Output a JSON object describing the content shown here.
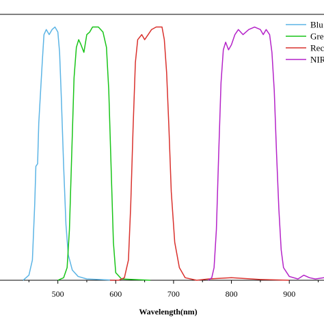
{
  "chart_data": {
    "type": "line",
    "title": "",
    "xlabel": "Wavelength(nm)",
    "ylabel": "",
    "xlim": [
      400,
      960
    ],
    "ylim": [
      0,
      1.05
    ],
    "x_ticks": [
      500,
      600,
      700,
      800,
      900
    ],
    "grid": false,
    "legend_placement": "top-right",
    "series": [
      {
        "name": "Blu",
        "color": "#5bb4e5",
        "points": [
          [
            440,
            0
          ],
          [
            450,
            0.02
          ],
          [
            456,
            0.08
          ],
          [
            460,
            0.3
          ],
          [
            462,
            0.45
          ],
          [
            465,
            0.46
          ],
          [
            467,
            0.62
          ],
          [
            470,
            0.74
          ],
          [
            473,
            0.86
          ],
          [
            476,
            0.97
          ],
          [
            480,
            0.99
          ],
          [
            485,
            0.97
          ],
          [
            490,
            0.99
          ],
          [
            495,
            1.0
          ],
          [
            500,
            0.98
          ],
          [
            503,
            0.9
          ],
          [
            506,
            0.72
          ],
          [
            510,
            0.45
          ],
          [
            514,
            0.22
          ],
          [
            518,
            0.1
          ],
          [
            525,
            0.04
          ],
          [
            535,
            0.015
          ],
          [
            550,
            0.005
          ],
          [
            600,
            0
          ]
        ]
      },
      {
        "name": "Gre",
        "color": "#17c417",
        "points": [
          [
            500,
            0
          ],
          [
            510,
            0.01
          ],
          [
            516,
            0.05
          ],
          [
            520,
            0.2
          ],
          [
            524,
            0.5
          ],
          [
            528,
            0.8
          ],
          [
            532,
            0.92
          ],
          [
            536,
            0.95
          ],
          [
            540,
            0.93
          ],
          [
            545,
            0.9
          ],
          [
            550,
            0.97
          ],
          [
            555,
            0.98
          ],
          [
            560,
            1.0
          ],
          [
            570,
            1.0
          ],
          [
            578,
            0.98
          ],
          [
            584,
            0.92
          ],
          [
            588,
            0.75
          ],
          [
            592,
            0.45
          ],
          [
            596,
            0.15
          ],
          [
            600,
            0.03
          ],
          [
            610,
            0.005
          ],
          [
            660,
            0
          ]
        ]
      },
      {
        "name": "Rec",
        "color": "#d9302c",
        "points": [
          [
            590,
            0
          ],
          [
            605,
            0
          ],
          [
            615,
            0.01
          ],
          [
            622,
            0.08
          ],
          [
            626,
            0.3
          ],
          [
            630,
            0.6
          ],
          [
            634,
            0.86
          ],
          [
            638,
            0.95
          ],
          [
            645,
            0.97
          ],
          [
            650,
            0.95
          ],
          [
            656,
            0.97
          ],
          [
            662,
            0.99
          ],
          [
            670,
            1.0
          ],
          [
            680,
            1.0
          ],
          [
            684,
            0.95
          ],
          [
            688,
            0.82
          ],
          [
            692,
            0.6
          ],
          [
            696,
            0.35
          ],
          [
            702,
            0.15
          ],
          [
            710,
            0.05
          ],
          [
            720,
            0.01
          ],
          [
            740,
            0
          ],
          [
            760,
            0.005
          ],
          [
            800,
            0.01
          ],
          [
            850,
            0.003
          ],
          [
            900,
            0
          ]
        ]
      },
      {
        "name": "NIR",
        "color": "#b422c8",
        "points": [
          [
            760,
            0
          ],
          [
            766,
            0.01
          ],
          [
            770,
            0.05
          ],
          [
            774,
            0.2
          ],
          [
            778,
            0.5
          ],
          [
            782,
            0.78
          ],
          [
            786,
            0.91
          ],
          [
            790,
            0.94
          ],
          [
            795,
            0.91
          ],
          [
            800,
            0.93
          ],
          [
            806,
            0.97
          ],
          [
            812,
            0.99
          ],
          [
            820,
            0.97
          ],
          [
            830,
            0.99
          ],
          [
            840,
            1.0
          ],
          [
            850,
            0.99
          ],
          [
            855,
            0.97
          ],
          [
            860,
            0.99
          ],
          [
            866,
            0.97
          ],
          [
            870,
            0.9
          ],
          [
            874,
            0.75
          ],
          [
            878,
            0.5
          ],
          [
            882,
            0.28
          ],
          [
            886,
            0.12
          ],
          [
            890,
            0.05
          ],
          [
            900,
            0.015
          ],
          [
            915,
            0.005
          ],
          [
            925,
            0.02
          ],
          [
            935,
            0.01
          ],
          [
            945,
            0.005
          ],
          [
            960,
            0.01
          ]
        ]
      }
    ]
  }
}
